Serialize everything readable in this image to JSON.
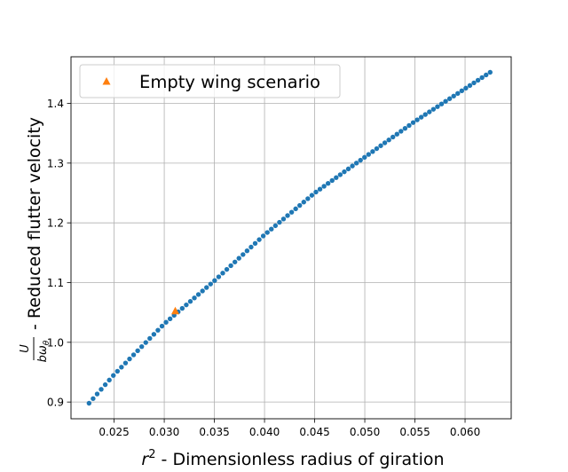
{
  "chart_data": {
    "type": "scatter",
    "xlabel": {
      "base": "r",
      "sup": "2",
      "text": " - Dimensionless radius of giration"
    },
    "ylabel": {
      "num": "U",
      "den": "bω",
      "den_sub": "θ",
      "text": " - Reduced flutter velocity"
    },
    "xlim": [
      0.0207,
      0.0646
    ],
    "ylim": [
      0.872,
      1.478
    ],
    "xticks": [
      0.025,
      0.03,
      0.035,
      0.04,
      0.045,
      0.05,
      0.055,
      0.06
    ],
    "xtick_labels": [
      "0.025",
      "0.030",
      "0.035",
      "0.040",
      "0.045",
      "0.050",
      "0.055",
      "0.060"
    ],
    "yticks": [
      0.9,
      1.0,
      1.1,
      1.2,
      1.3,
      1.4
    ],
    "ytick_labels": [
      "0.9",
      "1.0",
      "1.1",
      "1.2",
      "1.3",
      "1.4"
    ],
    "grid": true,
    "legend": {
      "position": "top-left"
    },
    "series": [
      {
        "marker": "circle",
        "color": "#1f77b4",
        "x_start": 0.0225,
        "x_end": 0.0625,
        "count": 100,
        "y_at_x": [
          [
            0.0225,
            0.898
          ],
          [
            0.025,
            0.946
          ],
          [
            0.03,
            1.031
          ],
          [
            0.035,
            1.103
          ],
          [
            0.04,
            1.18
          ],
          [
            0.045,
            1.25
          ],
          [
            0.05,
            1.31
          ],
          [
            0.055,
            1.37
          ],
          [
            0.0625,
            1.452
          ]
        ]
      },
      {
        "name": "Empty wing scenario",
        "marker": "triangle",
        "color": "#ff7f0e",
        "x": [
          0.0311
        ],
        "y": [
          1.052
        ]
      }
    ]
  }
}
